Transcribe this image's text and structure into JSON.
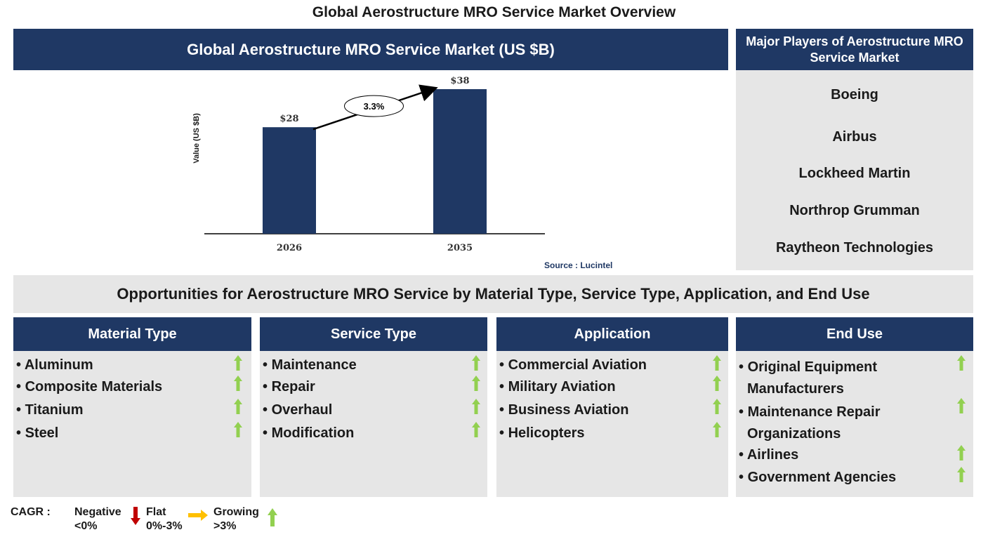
{
  "page_title": "Global Aerostructure MRO Service Market Overview",
  "chart_header": "Global Aerostructure MRO Service Market (US $B)",
  "chart_data": {
    "type": "bar",
    "categories": [
      "2026",
      "2035"
    ],
    "values": [
      28,
      38
    ],
    "data_labels": [
      "$28",
      "$38"
    ],
    "ylabel": "Value (US $B)",
    "ylim": [
      0,
      38
    ],
    "bar_color": "#1f3864",
    "cagr_label": "3.3%",
    "source": "Source : Lucintel"
  },
  "players": {
    "title": "Major Players of Aerostructure MRO Service Market",
    "items": [
      "Boeing",
      "Airbus",
      "Lockheed Martin",
      "Northrop Grumman",
      "Raytheon Technologies"
    ]
  },
  "opportunities_title": "Opportunities for Aerostructure MRO Service by Material Type, Service Type, Application, and End Use",
  "segments": [
    {
      "title": "Material Type",
      "items": [
        "Aluminum",
        "Composite Materials",
        "Titanium",
        "Steel"
      ]
    },
    {
      "title": "Service Type",
      "items": [
        "Maintenance",
        "Repair",
        "Overhaul",
        "Modification"
      ]
    },
    {
      "title": "Application",
      "items": [
        "Commercial Aviation",
        "Military Aviation",
        "Business Aviation",
        "Helicopters"
      ]
    },
    {
      "title": "End Use",
      "items": [
        "Original Equipment Manufacturers",
        "Maintenance Repair Organizations",
        "Airlines",
        "Government Agencies"
      ]
    }
  ],
  "legend": {
    "label": "CAGR :",
    "negative": "Negative",
    "negative_range": "<0%",
    "flat": "Flat",
    "flat_range": "0%-3%",
    "growing": "Growing",
    "growing_range": ">3%"
  },
  "colors": {
    "navy": "#1f3864",
    "panel_grey": "#e6e6e6",
    "growth_green": "#92d050",
    "decline_red": "#c00000",
    "flat_yellow": "#ffc000"
  }
}
